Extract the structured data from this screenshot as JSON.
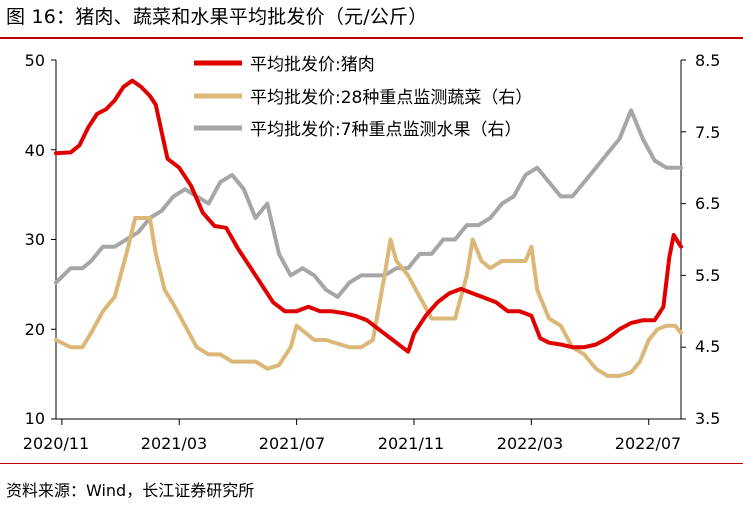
{
  "figure": {
    "title": "图 16：猪肉、蔬菜和水果平均批发价（元/公斤）",
    "source": "资料来源：Wind，长江证券研究所"
  },
  "colors": {
    "pork": "#e00000",
    "vegetable": "#dcb878",
    "fruit": "#a6a6a6",
    "rule": "#c00000"
  },
  "chart_data": {
    "type": "line",
    "x_ticks": [
      "2020/11",
      "2021/03",
      "2021/07",
      "2021/11",
      "2022/03",
      "2022/07"
    ],
    "x_tick_months": [
      0,
      4,
      8,
      12,
      16,
      20
    ],
    "x_range_months": [
      -0.2,
      21.1
    ],
    "y_left": {
      "min": 10,
      "max": 50,
      "ticks": [
        10,
        20,
        30,
        40,
        50
      ]
    },
    "y_right": {
      "min": 3.5,
      "max": 8.5,
      "ticks": [
        "3.5",
        "4.5",
        "5.5",
        "6.5",
        "7.5",
        "8.5"
      ]
    },
    "legend_position": "top-center",
    "series": [
      {
        "name": "平均批发价:猪肉",
        "axis": "left",
        "points": [
          [
            -0.2,
            39.6
          ],
          [
            0.3,
            39.7
          ],
          [
            0.6,
            40.5
          ],
          [
            0.9,
            42.5
          ],
          [
            1.2,
            44.0
          ],
          [
            1.5,
            44.5
          ],
          [
            1.8,
            45.5
          ],
          [
            2.1,
            47.0
          ],
          [
            2.4,
            47.7
          ],
          [
            2.7,
            47.0
          ],
          [
            3.0,
            46.0
          ],
          [
            3.2,
            45.0
          ],
          [
            3.4,
            42.0
          ],
          [
            3.6,
            39.0
          ],
          [
            4.0,
            38.0
          ],
          [
            4.4,
            36.0
          ],
          [
            4.8,
            33.0
          ],
          [
            5.2,
            31.5
          ],
          [
            5.6,
            31.3
          ],
          [
            6.0,
            29.0
          ],
          [
            6.4,
            27.0
          ],
          [
            6.8,
            25.0
          ],
          [
            7.2,
            23.0
          ],
          [
            7.6,
            22.0
          ],
          [
            8.0,
            22.0
          ],
          [
            8.4,
            22.5
          ],
          [
            8.8,
            22.0
          ],
          [
            9.2,
            22.0
          ],
          [
            9.6,
            21.8
          ],
          [
            10.0,
            21.5
          ],
          [
            10.4,
            21.0
          ],
          [
            10.8,
            20.0
          ],
          [
            11.2,
            19.0
          ],
          [
            11.6,
            18.0
          ],
          [
            11.8,
            17.5
          ],
          [
            12.0,
            19.5
          ],
          [
            12.4,
            21.5
          ],
          [
            12.8,
            23.0
          ],
          [
            13.2,
            24.0
          ],
          [
            13.6,
            24.5
          ],
          [
            14.0,
            24.0
          ],
          [
            14.4,
            23.5
          ],
          [
            14.8,
            23.0
          ],
          [
            15.2,
            22.0
          ],
          [
            15.6,
            22.0
          ],
          [
            16.0,
            21.5
          ],
          [
            16.3,
            19.0
          ],
          [
            16.6,
            18.5
          ],
          [
            17.0,
            18.3
          ],
          [
            17.4,
            18.0
          ],
          [
            17.8,
            18.0
          ],
          [
            18.2,
            18.3
          ],
          [
            18.6,
            19.0
          ],
          [
            19.0,
            20.0
          ],
          [
            19.4,
            20.7
          ],
          [
            19.8,
            21.0
          ],
          [
            20.2,
            21.0
          ],
          [
            20.5,
            22.5
          ],
          [
            20.7,
            28.0
          ],
          [
            20.85,
            30.5
          ],
          [
            21.0,
            29.7
          ],
          [
            21.1,
            29.2
          ]
        ]
      },
      {
        "name": "平均批发价:28种重点监测蔬菜（右）",
        "axis": "right",
        "points": [
          [
            -0.2,
            4.6
          ],
          [
            0.3,
            4.5
          ],
          [
            0.7,
            4.5
          ],
          [
            1.0,
            4.7
          ],
          [
            1.4,
            5.0
          ],
          [
            1.8,
            5.2
          ],
          [
            2.2,
            5.8
          ],
          [
            2.5,
            6.3
          ],
          [
            2.8,
            6.3
          ],
          [
            3.0,
            6.3
          ],
          [
            3.2,
            5.8
          ],
          [
            3.5,
            5.3
          ],
          [
            3.8,
            5.1
          ],
          [
            4.2,
            4.8
          ],
          [
            4.6,
            4.5
          ],
          [
            5.0,
            4.4
          ],
          [
            5.4,
            4.4
          ],
          [
            5.8,
            4.3
          ],
          [
            6.2,
            4.3
          ],
          [
            6.6,
            4.3
          ],
          [
            7.0,
            4.2
          ],
          [
            7.4,
            4.25
          ],
          [
            7.8,
            4.5
          ],
          [
            8.0,
            4.8
          ],
          [
            8.3,
            4.7
          ],
          [
            8.6,
            4.6
          ],
          [
            9.0,
            4.6
          ],
          [
            9.4,
            4.55
          ],
          [
            9.8,
            4.5
          ],
          [
            10.2,
            4.5
          ],
          [
            10.6,
            4.6
          ],
          [
            11.0,
            5.5
          ],
          [
            11.2,
            6.0
          ],
          [
            11.4,
            5.7
          ],
          [
            11.8,
            5.5
          ],
          [
            12.2,
            5.2
          ],
          [
            12.6,
            4.9
          ],
          [
            13.0,
            4.9
          ],
          [
            13.4,
            4.9
          ],
          [
            13.8,
            5.5
          ],
          [
            14.0,
            6.0
          ],
          [
            14.3,
            5.7
          ],
          [
            14.6,
            5.6
          ],
          [
            15.0,
            5.7
          ],
          [
            15.4,
            5.7
          ],
          [
            15.8,
            5.7
          ],
          [
            16.0,
            5.9
          ],
          [
            16.2,
            5.3
          ],
          [
            16.6,
            4.9
          ],
          [
            17.0,
            4.8
          ],
          [
            17.4,
            4.5
          ],
          [
            17.8,
            4.4
          ],
          [
            18.2,
            4.2
          ],
          [
            18.6,
            4.1
          ],
          [
            19.0,
            4.1
          ],
          [
            19.4,
            4.15
          ],
          [
            19.7,
            4.3
          ],
          [
            20.0,
            4.6
          ],
          [
            20.3,
            4.75
          ],
          [
            20.6,
            4.8
          ],
          [
            20.9,
            4.8
          ],
          [
            21.1,
            4.7
          ]
        ]
      },
      {
        "name": "平均批发价:7种重点监测水果（右）",
        "axis": "right",
        "points": [
          [
            -0.2,
            5.4
          ],
          [
            0.3,
            5.6
          ],
          [
            0.7,
            5.6
          ],
          [
            1.0,
            5.7
          ],
          [
            1.4,
            5.9
          ],
          [
            1.8,
            5.9
          ],
          [
            2.2,
            6.0
          ],
          [
            2.6,
            6.1
          ],
          [
            3.0,
            6.3
          ],
          [
            3.4,
            6.4
          ],
          [
            3.8,
            6.6
          ],
          [
            4.2,
            6.7
          ],
          [
            4.6,
            6.6
          ],
          [
            5.0,
            6.5
          ],
          [
            5.4,
            6.8
          ],
          [
            5.8,
            6.9
          ],
          [
            6.2,
            6.7
          ],
          [
            6.6,
            6.3
          ],
          [
            7.0,
            6.5
          ],
          [
            7.4,
            5.8
          ],
          [
            7.8,
            5.5
          ],
          [
            8.2,
            5.6
          ],
          [
            8.6,
            5.5
          ],
          [
            9.0,
            5.3
          ],
          [
            9.4,
            5.2
          ],
          [
            9.8,
            5.4
          ],
          [
            10.2,
            5.5
          ],
          [
            10.6,
            5.5
          ],
          [
            11.0,
            5.5
          ],
          [
            11.4,
            5.6
          ],
          [
            11.8,
            5.6
          ],
          [
            12.2,
            5.8
          ],
          [
            12.6,
            5.8
          ],
          [
            13.0,
            6.0
          ],
          [
            13.4,
            6.0
          ],
          [
            13.8,
            6.2
          ],
          [
            14.2,
            6.2
          ],
          [
            14.6,
            6.3
          ],
          [
            15.0,
            6.5
          ],
          [
            15.4,
            6.6
          ],
          [
            15.8,
            6.9
          ],
          [
            16.2,
            7.0
          ],
          [
            16.6,
            6.8
          ],
          [
            17.0,
            6.6
          ],
          [
            17.4,
            6.6
          ],
          [
            17.8,
            6.8
          ],
          [
            18.2,
            7.0
          ],
          [
            18.6,
            7.2
          ],
          [
            19.0,
            7.4
          ],
          [
            19.4,
            7.8
          ],
          [
            19.8,
            7.4
          ],
          [
            20.2,
            7.1
          ],
          [
            20.6,
            7.0
          ],
          [
            21.1,
            7.0
          ]
        ]
      }
    ]
  }
}
